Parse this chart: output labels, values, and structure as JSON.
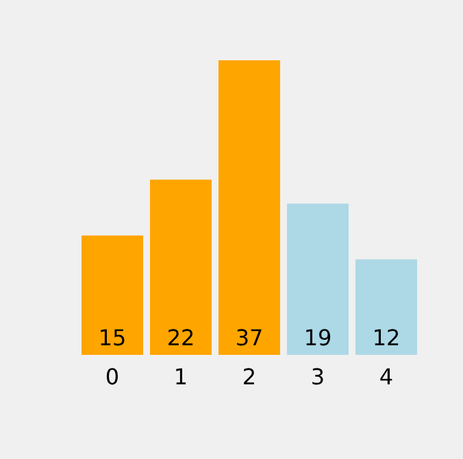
{
  "chart_data": {
    "type": "bar",
    "categories": [
      "0",
      "1",
      "2",
      "3",
      "4"
    ],
    "values": [
      15,
      22,
      37,
      19,
      12
    ],
    "colors": [
      "#ffa500",
      "#ffa500",
      "#ffa500",
      "#add8e6",
      "#add8e6"
    ],
    "data_labels": true
  }
}
